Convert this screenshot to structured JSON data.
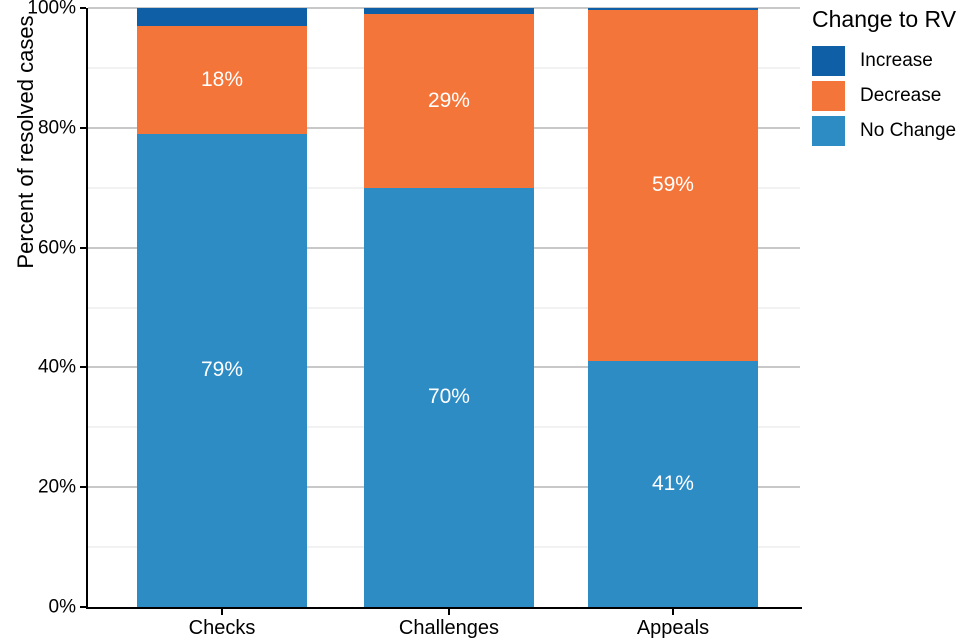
{
  "chart_data": {
    "type": "bar",
    "stacked": true,
    "percent_scale": true,
    "title": "",
    "xlabel": "",
    "ylabel": "Percent of resolved cases",
    "ylim": [
      0,
      100
    ],
    "grid": {
      "minor_every": 10,
      "major_every": 20,
      "orientation": "horizontal"
    },
    "y_ticks": [
      {
        "value": 0,
        "label": "0%"
      },
      {
        "value": 20,
        "label": "20%"
      },
      {
        "value": 40,
        "label": "40%"
      },
      {
        "value": 60,
        "label": "60%"
      },
      {
        "value": 80,
        "label": "80%"
      },
      {
        "value": 100,
        "label": "100%"
      }
    ],
    "categories": [
      "Checks",
      "Challenges",
      "Appeals"
    ],
    "series": [
      {
        "name": "No Change",
        "color": "#2e8cc5",
        "values": [
          79,
          70,
          41
        ],
        "labels": [
          "79%",
          "70%",
          "41%"
        ]
      },
      {
        "name": "Decrease",
        "color": "#f4753a",
        "values": [
          18,
          29,
          59
        ],
        "labels": [
          "18%",
          "29%",
          "59%"
        ]
      },
      {
        "name": "Increase",
        "color": "#0e5fa6",
        "values": [
          3,
          1,
          0.4
        ],
        "labels": [
          null,
          null,
          null
        ]
      }
    ],
    "legend": {
      "title": "Change to RV",
      "position": "top-right",
      "items": [
        {
          "label": "Increase",
          "color": "#0e5fa6"
        },
        {
          "label": "Decrease",
          "color": "#f4753a"
        },
        {
          "label": "No Change",
          "color": "#2e8cc5"
        }
      ]
    }
  }
}
